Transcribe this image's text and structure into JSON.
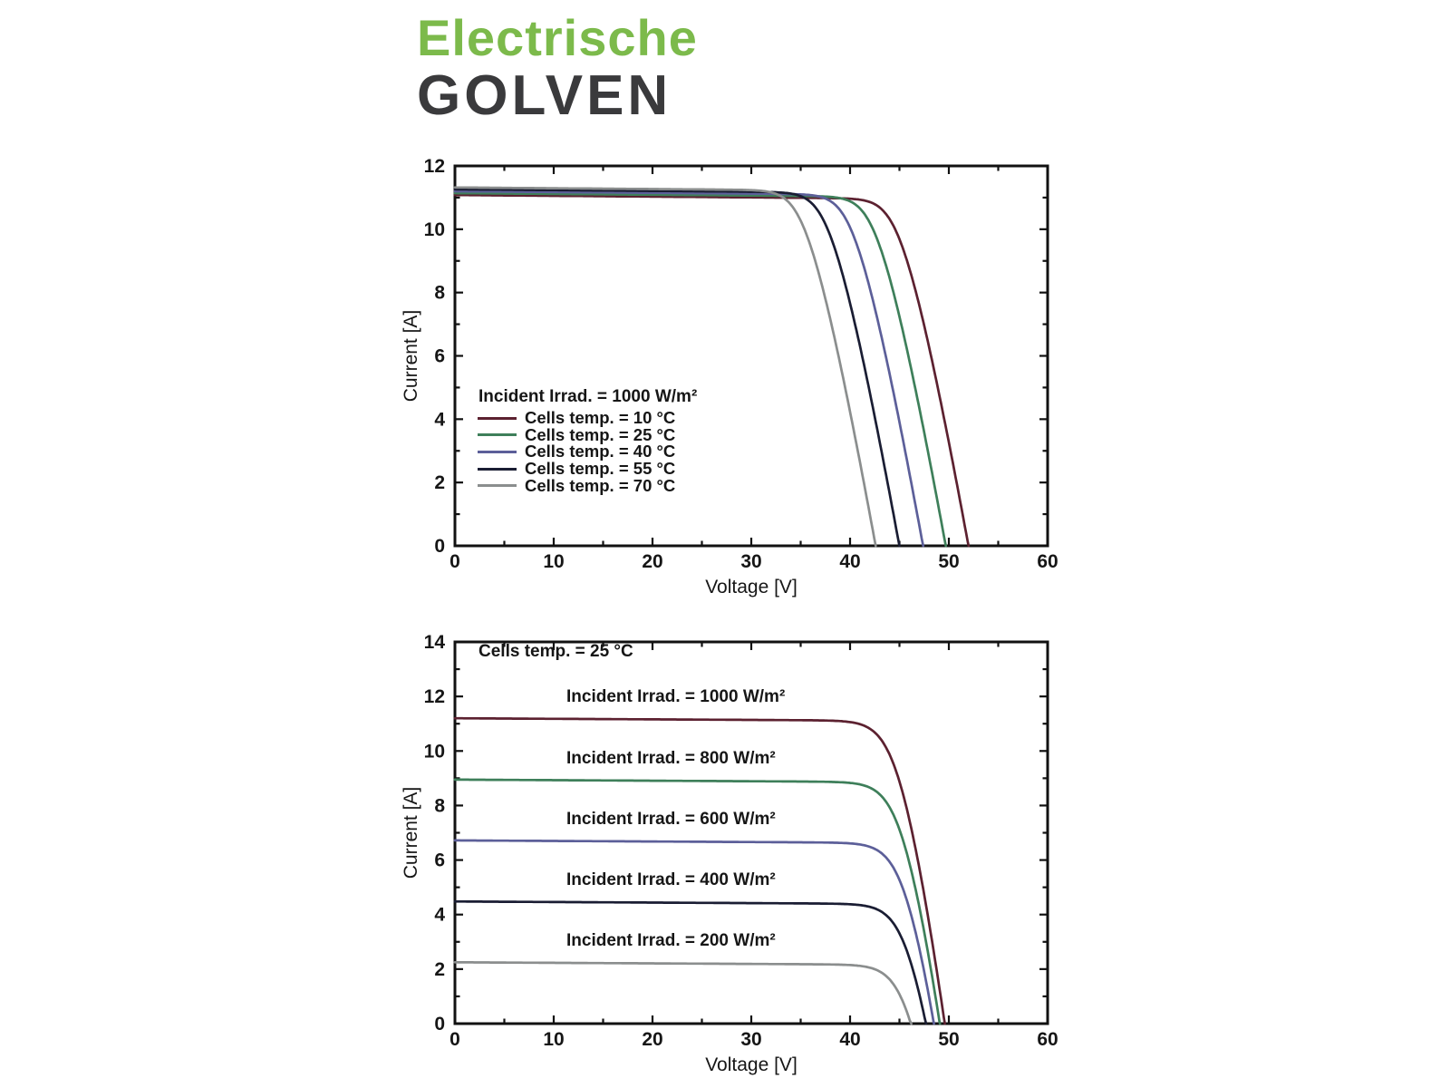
{
  "page": {
    "background": "#ffffff"
  },
  "title": {
    "line1": "Electrische",
    "line2": "GOLVEN",
    "line1_color": "#7cba4b",
    "line2_color": "#3a3a3c"
  },
  "palette": {
    "dark_red": "#5c2130",
    "green": "#3e7f5a",
    "slate_blue": "#5c5f99",
    "navy": "#1a1d33",
    "gray": "#8b8e8e",
    "axis": "#111111"
  },
  "chart_data": [
    {
      "id": "iv_vs_temperature",
      "type": "line",
      "title": "",
      "xlabel": "Voltage [V]",
      "ylabel": "Current [A]",
      "xlim": [
        0,
        60
      ],
      "ylim": [
        0,
        12
      ],
      "x_major_ticks": [
        0,
        10,
        20,
        30,
        40,
        50,
        60
      ],
      "x_minor_ticks": [
        5,
        15,
        25,
        35,
        45,
        55
      ],
      "y_major_ticks": [
        0,
        2,
        4,
        6,
        8,
        10,
        12
      ],
      "y_minor_ticks": [
        1,
        3,
        5,
        7,
        9,
        11
      ],
      "grid": false,
      "legend_position": "inside-left-middle",
      "legend_header": "Incident Irrad. = 1000 W/m²",
      "model": {
        "vt": 1.0,
        "rs": 0.5,
        "gsh": 0.0025
      },
      "series": [
        {
          "name": "Cells temp. = 10 °C",
          "color": "#5c2130",
          "isc_a": 11.08,
          "voc_v": 52.0
        },
        {
          "name": "Cells temp. = 25 °C",
          "color": "#3e7f5a",
          "isc_a": 11.14,
          "voc_v": 49.7
        },
        {
          "name": "Cells temp. = 40 °C",
          "color": "#5c5f99",
          "isc_a": 11.2,
          "voc_v": 47.4
        },
        {
          "name": "Cells temp. = 55 °C",
          "color": "#1a1d33",
          "isc_a": 11.26,
          "voc_v": 45.0
        },
        {
          "name": "Cells temp. = 70 °C",
          "color": "#8b8e8e",
          "isc_a": 11.32,
          "voc_v": 42.6
        }
      ]
    },
    {
      "id": "iv_vs_irradiance",
      "type": "line",
      "title": "",
      "xlabel": "Voltage [V]",
      "ylabel": "Current [A]",
      "xlim": [
        0,
        60
      ],
      "ylim": [
        0,
        14
      ],
      "x_major_ticks": [
        0,
        10,
        20,
        30,
        40,
        50,
        60
      ],
      "x_minor_ticks": [
        5,
        15,
        25,
        35,
        45,
        55
      ],
      "y_major_ticks": [
        0,
        2,
        4,
        6,
        8,
        10,
        12,
        14
      ],
      "y_minor_ticks": [
        1,
        3,
        5,
        7,
        9,
        11,
        13
      ],
      "grid": false,
      "corner_note": "Cells temp. = 25 °C",
      "model": {
        "vt": 1.2,
        "rs": 0.3,
        "gsh": 0.002
      },
      "series": [
        {
          "name": "Incident Irrad. = 1000 W/m²",
          "color": "#5c2130",
          "isc_a": 11.2,
          "voc_v": 49.6
        },
        {
          "name": "Incident Irrad. = 800 W/m²",
          "color": "#3e7f5a",
          "isc_a": 8.95,
          "voc_v": 49.1
        },
        {
          "name": "Incident Irrad. = 600 W/m²",
          "color": "#5c5f99",
          "isc_a": 6.72,
          "voc_v": 48.5
        },
        {
          "name": "Incident Irrad. = 400 W/m²",
          "color": "#1a1d33",
          "isc_a": 4.48,
          "voc_v": 47.7
        },
        {
          "name": "Incident Irrad. = 200 W/m²",
          "color": "#8b8e8e",
          "isc_a": 2.25,
          "voc_v": 46.2
        }
      ]
    }
  ]
}
